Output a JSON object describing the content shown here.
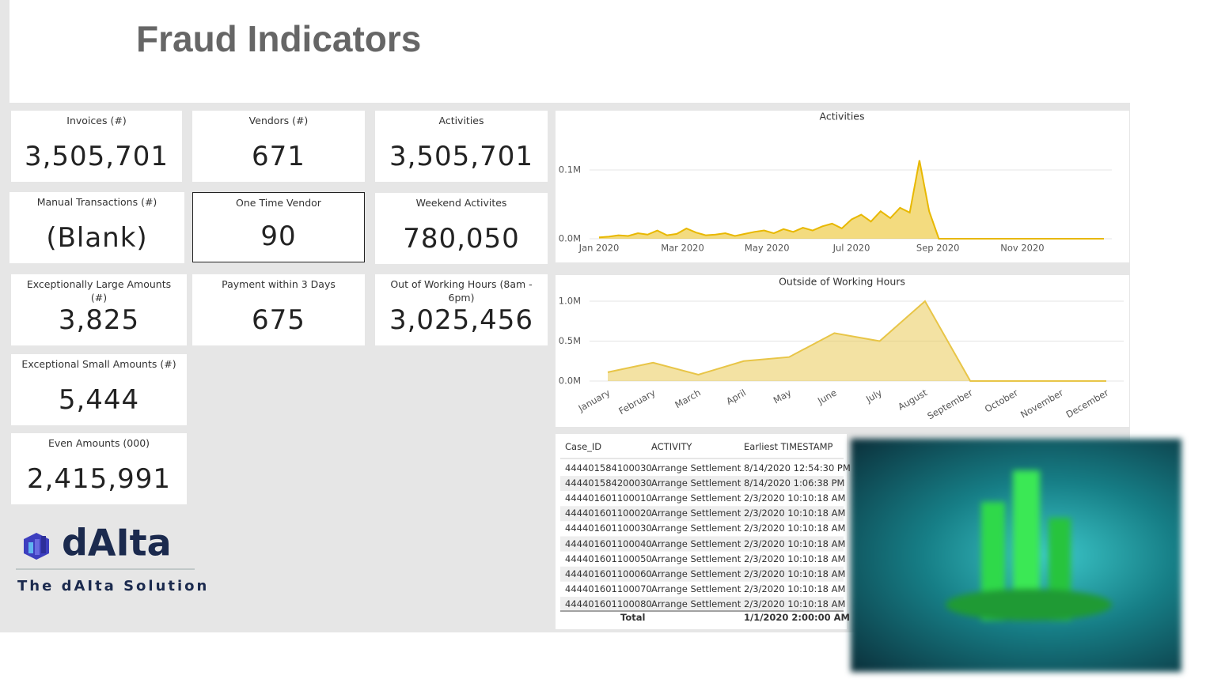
{
  "header": {
    "title": "Fraud Indicators"
  },
  "cards": [
    {
      "label": "Invoices (#)",
      "value": "3,505,701"
    },
    {
      "label": "Vendors (#)",
      "value": "671"
    },
    {
      "label": "Activities",
      "value": "3,505,701"
    },
    {
      "label": "Manual Transactions (#)",
      "value": "(Blank)"
    },
    {
      "label": "One Time Vendor",
      "value": "90"
    },
    {
      "label": "Weekend Activites",
      "value": "780,050"
    },
    {
      "label": "Exceptionally Large Amounts (#)",
      "value": "3,825"
    },
    {
      "label": "Payment within 3 Days",
      "value": "675"
    },
    {
      "label": "Out of Working Hours (8am - 6pm)",
      "value": "3,025,456"
    },
    {
      "label": "Exceptional Small Amounts (#)",
      "value": "5,444"
    },
    {
      "label": "Even Amounts (000)",
      "value": "2,415,991"
    }
  ],
  "chart_data": [
    {
      "type": "area",
      "title": "Activities",
      "color": "#e8b800",
      "values": [
        2000,
        3000,
        5000,
        4000,
        8000,
        6000,
        12000,
        5000,
        7000,
        15000,
        9000,
        5000,
        6000,
        8000,
        4000,
        7000,
        10000,
        12000,
        8000,
        14000,
        10000,
        16000,
        12000,
        18000,
        22000,
        15000,
        28000,
        35000,
        25000,
        40000,
        30000,
        45000,
        38000,
        114000,
        40000,
        0,
        0,
        0,
        0,
        0,
        0,
        0,
        0,
        0,
        0,
        0,
        0,
        0,
        0,
        0,
        0,
        0,
        0
      ],
      "xlim": [
        0,
        52
      ],
      "xticks": [
        {
          "value": 0,
          "label": "Jan 2020"
        },
        {
          "value": 8.6,
          "label": "Mar 2020"
        },
        {
          "value": 17.3,
          "label": "May 2020"
        },
        {
          "value": 26,
          "label": "Jul 2020"
        },
        {
          "value": 34.9,
          "label": "Sep 2020"
        },
        {
          "value": 43.6,
          "label": "Nov 2020"
        }
      ],
      "ylim": [
        0,
        100000
      ],
      "yticks": [
        {
          "value": 0,
          "label": "0.0M"
        },
        {
          "value": 100000,
          "label": "0.1M"
        }
      ],
      "grid": true
    },
    {
      "type": "area",
      "title": "Outside of Working Hours",
      "color": "#e8c547",
      "categories": [
        "January",
        "February",
        "March",
        "April",
        "May",
        "June",
        "July",
        "August",
        "September",
        "October",
        "November",
        "December"
      ],
      "values": [
        110000,
        230000,
        80000,
        250000,
        300000,
        600000,
        500000,
        1000000,
        0,
        0,
        0,
        0
      ],
      "ylim": [
        0,
        1000000
      ],
      "yticks": [
        {
          "value": 0,
          "label": "0.0M"
        },
        {
          "value": 500000,
          "label": "0.5M"
        },
        {
          "value": 1000000,
          "label": "1.0M"
        }
      ],
      "grid": true
    }
  ],
  "table": {
    "columns": [
      "Case_ID",
      "ACTIVITY",
      "Earliest TIMESTAMP"
    ],
    "rows": [
      [
        "444401584100030",
        "Arrange Settlement",
        "8/14/2020 12:54:30 PM"
      ],
      [
        "444401584200030",
        "Arrange Settlement",
        "8/14/2020 1:06:38 PM"
      ],
      [
        "444401601100010",
        "Arrange Settlement",
        "2/3/2020 10:10:18 AM"
      ],
      [
        "444401601100020",
        "Arrange Settlement",
        "2/3/2020 10:10:18 AM"
      ],
      [
        "444401601100030",
        "Arrange Settlement",
        "2/3/2020 10:10:18 AM"
      ],
      [
        "444401601100040",
        "Arrange Settlement",
        "2/3/2020 10:10:18 AM"
      ],
      [
        "444401601100050",
        "Arrange Settlement",
        "2/3/2020 10:10:18 AM"
      ],
      [
        "444401601100060",
        "Arrange Settlement",
        "2/3/2020 10:10:18 AM"
      ],
      [
        "444401601100070",
        "Arrange Settlement",
        "2/3/2020 10:10:18 AM"
      ],
      [
        "444401601100080",
        "Arrange Settlement",
        "2/3/2020 10:10:18 AM"
      ]
    ],
    "total": [
      "Total",
      "1/1/2020 2:00:00 AM"
    ]
  },
  "logo": {
    "name": "dAIta",
    "tagline": "The dAIta Solution"
  }
}
